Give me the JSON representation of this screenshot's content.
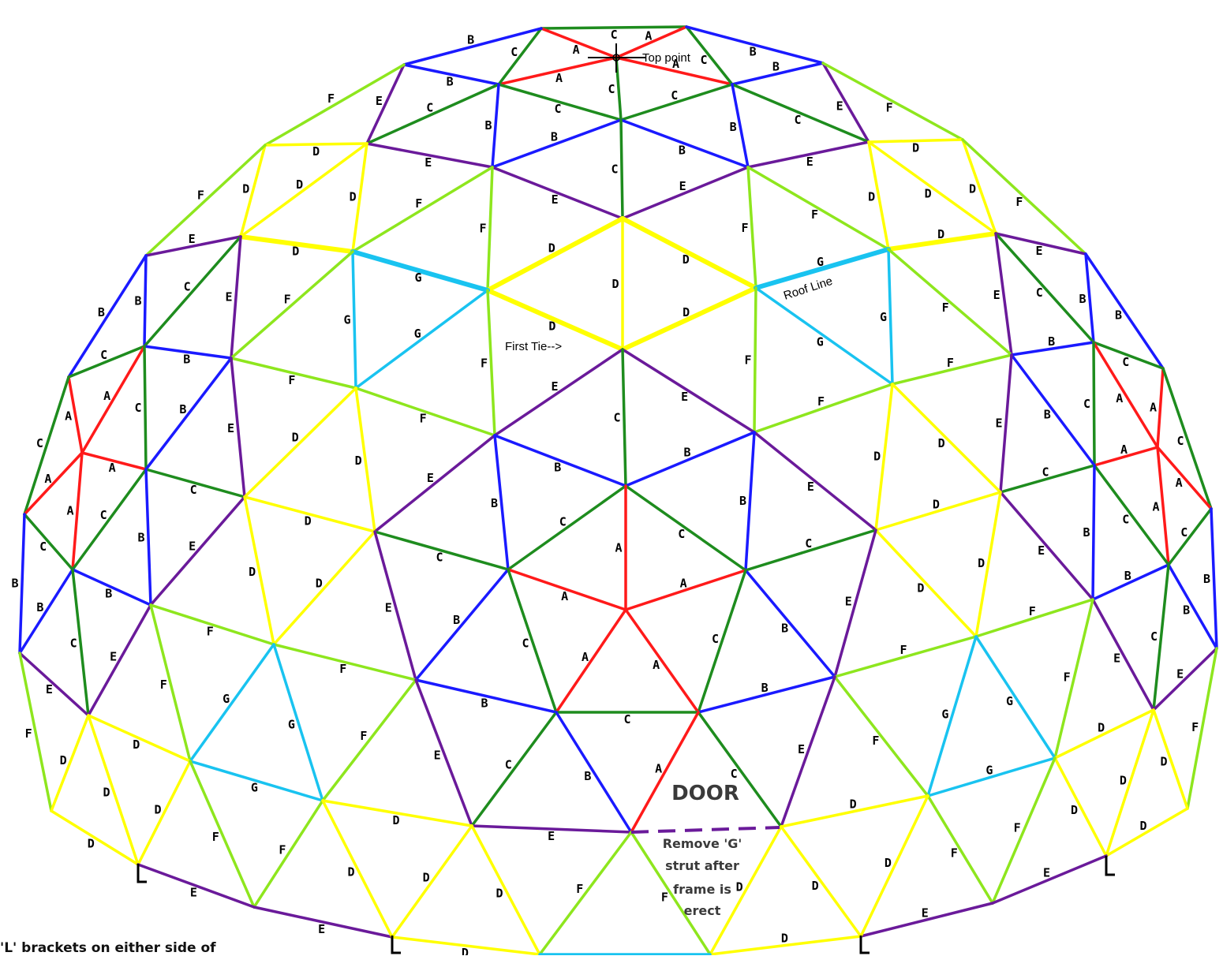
{
  "diagram": {
    "strut_colors": {
      "A": "#ff1a1a",
      "B": "#1a1aff",
      "C": "#1e8c1e",
      "D": "#ffff00",
      "E": "#6a1a9a",
      "F": "#8ee61e",
      "G": "#19c3f0"
    },
    "annotations": {
      "top_point": "Top point",
      "roof_line": "Roof Line",
      "first_tie": "First Tie-->",
      "door": "DOOR",
      "remove_note_1": "Remove 'G'",
      "remove_note_2": "strut after",
      "remove_note_3": "frame is",
      "remove_note_4": "erect",
      "footer": "'L' brackets on either side of"
    }
  }
}
